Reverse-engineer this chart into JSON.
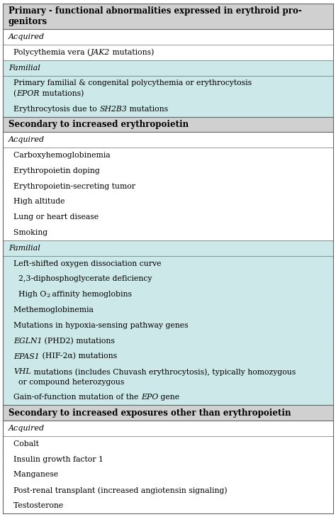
{
  "figsize": [
    4.74,
    7.29
  ],
  "dpi": 100,
  "familial_bg": "#cce8e8",
  "white_bg": "#ffffff",
  "header_bg": "#d0d0d0",
  "border_color": "#666666",
  "font_size": 8.0,
  "header_font_size": 8.5,
  "sub_font_size": 7.8,
  "rows": [
    {
      "type": "header",
      "lines": [
        {
          "parts": [
            {
              "text": "Primary - functional abnormalities expressed in erythroid pro-",
              "style": "bold"
            }
          ]
        },
        {
          "parts": [
            {
              "text": "genitors",
              "style": "bold"
            }
          ]
        }
      ]
    },
    {
      "type": "acquired_label"
    },
    {
      "type": "item",
      "bg": "white",
      "lines": [
        {
          "parts": [
            {
              "text": "  Polycythemia vera (",
              "style": "normal"
            },
            {
              "text": "JAK2",
              "style": "italic"
            },
            {
              "text": " mutations)",
              "style": "normal"
            }
          ]
        }
      ]
    },
    {
      "type": "familial_label"
    },
    {
      "type": "item",
      "bg": "familial",
      "lines": [
        {
          "parts": [
            {
              "text": "  Primary familial & congenital polycythemia or erythrocytosis",
              "style": "normal"
            }
          ]
        },
        {
          "parts": [
            {
              "text": "  (",
              "style": "normal"
            },
            {
              "text": "EPOR",
              "style": "italic"
            },
            {
              "text": " mutations)",
              "style": "normal"
            }
          ]
        }
      ]
    },
    {
      "type": "item",
      "bg": "familial",
      "lines": [
        {
          "parts": [
            {
              "text": "  Erythrocytosis due to ",
              "style": "normal"
            },
            {
              "text": "SH2B3",
              "style": "italic"
            },
            {
              "text": " mutations",
              "style": "normal"
            }
          ]
        }
      ]
    },
    {
      "type": "header",
      "lines": [
        {
          "parts": [
            {
              "text": "Secondary to increased erythropoietin",
              "style": "bold"
            }
          ]
        }
      ]
    },
    {
      "type": "acquired_label"
    },
    {
      "type": "item",
      "bg": "white",
      "lines": [
        {
          "parts": [
            {
              "text": "  Carboxyhemoglobinemia",
              "style": "normal"
            }
          ]
        }
      ]
    },
    {
      "type": "item",
      "bg": "white",
      "lines": [
        {
          "parts": [
            {
              "text": "  Erythropoietin doping",
              "style": "normal"
            }
          ]
        }
      ]
    },
    {
      "type": "item",
      "bg": "white",
      "lines": [
        {
          "parts": [
            {
              "text": "  Erythropoietin-secreting tumor",
              "style": "normal"
            }
          ]
        }
      ]
    },
    {
      "type": "item",
      "bg": "white",
      "lines": [
        {
          "parts": [
            {
              "text": "  High altitude",
              "style": "normal"
            }
          ]
        }
      ]
    },
    {
      "type": "item",
      "bg": "white",
      "lines": [
        {
          "parts": [
            {
              "text": "  Lung or heart disease",
              "style": "normal"
            }
          ]
        }
      ]
    },
    {
      "type": "item",
      "bg": "white",
      "lines": [
        {
          "parts": [
            {
              "text": "  Smoking",
              "style": "normal"
            }
          ]
        }
      ]
    },
    {
      "type": "familial_label"
    },
    {
      "type": "item",
      "bg": "familial",
      "lines": [
        {
          "parts": [
            {
              "text": "  Left-shifted oxygen dissociation curve",
              "style": "normal"
            }
          ]
        }
      ]
    },
    {
      "type": "item",
      "bg": "familial",
      "lines": [
        {
          "parts": [
            {
              "text": "    2,3-diphosphoglycerate deficiency",
              "style": "normal"
            }
          ]
        }
      ]
    },
    {
      "type": "item",
      "bg": "familial",
      "lines": [
        {
          "parts": [
            {
              "text": "    High O",
              "style": "normal"
            },
            {
              "text": "2",
              "style": "sub"
            },
            {
              "text": " affinity hemoglobins",
              "style": "normal"
            }
          ]
        }
      ]
    },
    {
      "type": "item",
      "bg": "familial",
      "lines": [
        {
          "parts": [
            {
              "text": "  Methemoglobinemia",
              "style": "normal"
            }
          ]
        }
      ]
    },
    {
      "type": "item",
      "bg": "familial",
      "lines": [
        {
          "parts": [
            {
              "text": "  Mutations in hypoxia-sensing pathway genes",
              "style": "normal"
            }
          ]
        }
      ]
    },
    {
      "type": "item",
      "bg": "familial",
      "lines": [
        {
          "parts": [
            {
              "text": "  ",
              "style": "normal"
            },
            {
              "text": "EGLN1",
              "style": "italic"
            },
            {
              "text": " (PHD2) mutations",
              "style": "normal"
            }
          ]
        }
      ]
    },
    {
      "type": "item",
      "bg": "familial",
      "lines": [
        {
          "parts": [
            {
              "text": "  ",
              "style": "normal"
            },
            {
              "text": "EPAS1",
              "style": "italic"
            },
            {
              "text": " (HIF-2α) mutations",
              "style": "normal"
            }
          ]
        }
      ]
    },
    {
      "type": "item",
      "bg": "familial",
      "lines": [
        {
          "parts": [
            {
              "text": "  ",
              "style": "normal"
            },
            {
              "text": "VHL",
              "style": "italic"
            },
            {
              "text": " mutations (includes Chuvash erythrocytosis), typically homozygous",
              "style": "normal"
            }
          ]
        },
        {
          "parts": [
            {
              "text": "    or compound heterozygous",
              "style": "normal"
            }
          ]
        }
      ]
    },
    {
      "type": "item",
      "bg": "familial",
      "lines": [
        {
          "parts": [
            {
              "text": "  Gain-of-function mutation of the ",
              "style": "normal"
            },
            {
              "text": "EPO",
              "style": "italic"
            },
            {
              "text": " gene",
              "style": "normal"
            }
          ]
        }
      ]
    },
    {
      "type": "header",
      "lines": [
        {
          "parts": [
            {
              "text": "Secondary to increased exposures other than erythropoietin",
              "style": "bold"
            }
          ]
        }
      ]
    },
    {
      "type": "acquired_label"
    },
    {
      "type": "item",
      "bg": "white",
      "lines": [
        {
          "parts": [
            {
              "text": "  Cobalt",
              "style": "normal"
            }
          ]
        }
      ]
    },
    {
      "type": "item",
      "bg": "white",
      "lines": [
        {
          "parts": [
            {
              "text": "  Insulin growth factor 1",
              "style": "normal"
            }
          ]
        }
      ]
    },
    {
      "type": "item",
      "bg": "white",
      "lines": [
        {
          "parts": [
            {
              "text": "  Manganese",
              "style": "normal"
            }
          ]
        }
      ]
    },
    {
      "type": "item",
      "bg": "white",
      "lines": [
        {
          "parts": [
            {
              "text": "  Post-renal transplant (increased angiotensin signaling)",
              "style": "normal"
            }
          ]
        }
      ]
    },
    {
      "type": "item",
      "bg": "white",
      "lines": [
        {
          "parts": [
            {
              "text": "  Testosterone",
              "style": "normal"
            }
          ]
        }
      ]
    }
  ]
}
